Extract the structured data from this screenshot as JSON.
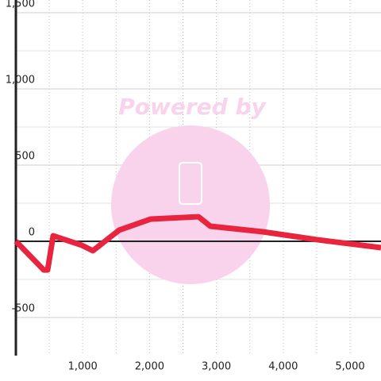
{
  "chart_data": {
    "type": "line",
    "watermark": "Powered by",
    "x": [
      0,
      416,
      475,
      558,
      986,
      1152,
      1544,
      2019,
      2732,
      2910,
      3682,
      4513,
      5463
    ],
    "series": [
      {
        "color": "#e8243f",
        "values": [
          0,
          -188,
          -188,
          36,
          -26,
          -62,
          73,
          146,
          161,
          99,
          63,
          10,
          -42
        ]
      }
    ],
    "xlim": [
      0,
      5463
    ],
    "ylim": [
      -750,
      1583
    ],
    "xticks": [
      {
        "value": 1000,
        "label": "1,000"
      },
      {
        "value": 2000,
        "label": "2,000"
      },
      {
        "value": 3000,
        "label": "3,000"
      },
      {
        "value": 4000,
        "label": "4,000"
      },
      {
        "value": 5000,
        "label": "5,000"
      }
    ],
    "yticks": [
      -500,
      0,
      500,
      {
        "value": 1000,
        "label": "1,000"
      },
      {
        "value": 1500,
        "label": "1,500"
      }
    ],
    "minor_xticks": [
      500,
      1500,
      2500,
      3500,
      4500
    ],
    "minor_yticks": [
      -250,
      250,
      750,
      1250
    ],
    "grid": true
  }
}
